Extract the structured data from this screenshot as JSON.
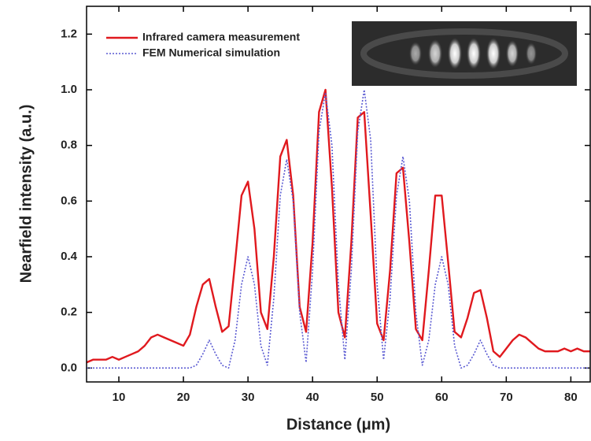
{
  "chart_data": {
    "type": "line",
    "xlabel": "Distance (μm)",
    "ylabel": "Nearfield intensity (a.u.)",
    "x": [
      5,
      6,
      7,
      8,
      9,
      10,
      11,
      12,
      13,
      14,
      15,
      16,
      17,
      18,
      19,
      20,
      21,
      22,
      23,
      24,
      25,
      26,
      27,
      28,
      29,
      30,
      31,
      32,
      33,
      34,
      35,
      36,
      37,
      38,
      39,
      40,
      41,
      42,
      43,
      44,
      45,
      46,
      47,
      48,
      49,
      50,
      51,
      52,
      53,
      54,
      55,
      56,
      57,
      58,
      59,
      60,
      61,
      62,
      63,
      64,
      65,
      66,
      67,
      68,
      69,
      70,
      71,
      72,
      73,
      74,
      75,
      76,
      77,
      78,
      79,
      80,
      81,
      82,
      83
    ],
    "series": [
      {
        "name": "Infrared camera measurement",
        "color": "#e0191e",
        "style": "solid",
        "values": [
          0.02,
          0.03,
          0.03,
          0.03,
          0.04,
          0.03,
          0.04,
          0.05,
          0.06,
          0.08,
          0.11,
          0.12,
          0.11,
          0.1,
          0.09,
          0.08,
          0.12,
          0.22,
          0.3,
          0.32,
          0.22,
          0.13,
          0.15,
          0.38,
          0.62,
          0.67,
          0.5,
          0.2,
          0.14,
          0.4,
          0.76,
          0.82,
          0.62,
          0.22,
          0.13,
          0.45,
          0.92,
          1.0,
          0.65,
          0.2,
          0.11,
          0.45,
          0.9,
          0.92,
          0.55,
          0.16,
          0.1,
          0.35,
          0.7,
          0.72,
          0.45,
          0.14,
          0.1,
          0.35,
          0.62,
          0.62,
          0.38,
          0.13,
          0.11,
          0.18,
          0.27,
          0.28,
          0.18,
          0.06,
          0.04,
          0.07,
          0.1,
          0.12,
          0.11,
          0.09,
          0.07,
          0.06,
          0.06,
          0.06,
          0.07,
          0.06,
          0.07,
          0.06,
          0.06
        ]
      },
      {
        "name": "FEM Numerical simulation",
        "color": "#5a5ad2",
        "style": "dotted",
        "values": [
          0,
          0,
          0,
          0,
          0,
          0,
          0,
          0,
          0,
          0,
          0,
          0,
          0,
          0,
          0,
          0,
          0,
          0.01,
          0.05,
          0.1,
          0.05,
          0.01,
          0,
          0.1,
          0.3,
          0.4,
          0.3,
          0.08,
          0.01,
          0.25,
          0.62,
          0.75,
          0.6,
          0.2,
          0.02,
          0.35,
          0.85,
          0.99,
          0.8,
          0.3,
          0.03,
          0.35,
          0.85,
          1.0,
          0.82,
          0.3,
          0.03,
          0.25,
          0.62,
          0.76,
          0.6,
          0.2,
          0.01,
          0.1,
          0.3,
          0.4,
          0.3,
          0.08,
          0,
          0.01,
          0.05,
          0.1,
          0.05,
          0.01,
          0,
          0,
          0,
          0,
          0,
          0,
          0,
          0,
          0,
          0,
          0,
          0,
          0,
          0,
          0
        ]
      }
    ],
    "xlim": [
      5,
      83
    ],
    "ylim": [
      -0.05,
      1.3
    ],
    "xticks": [
      10,
      20,
      30,
      40,
      50,
      60,
      70,
      80
    ],
    "yticks": [
      {
        "value": 0,
        "label": "0.0"
      },
      0.2,
      0.4,
      0.6,
      0.8,
      {
        "value": 1,
        "label": "1.0"
      },
      1.2
    ],
    "legend": "upper left"
  }
}
